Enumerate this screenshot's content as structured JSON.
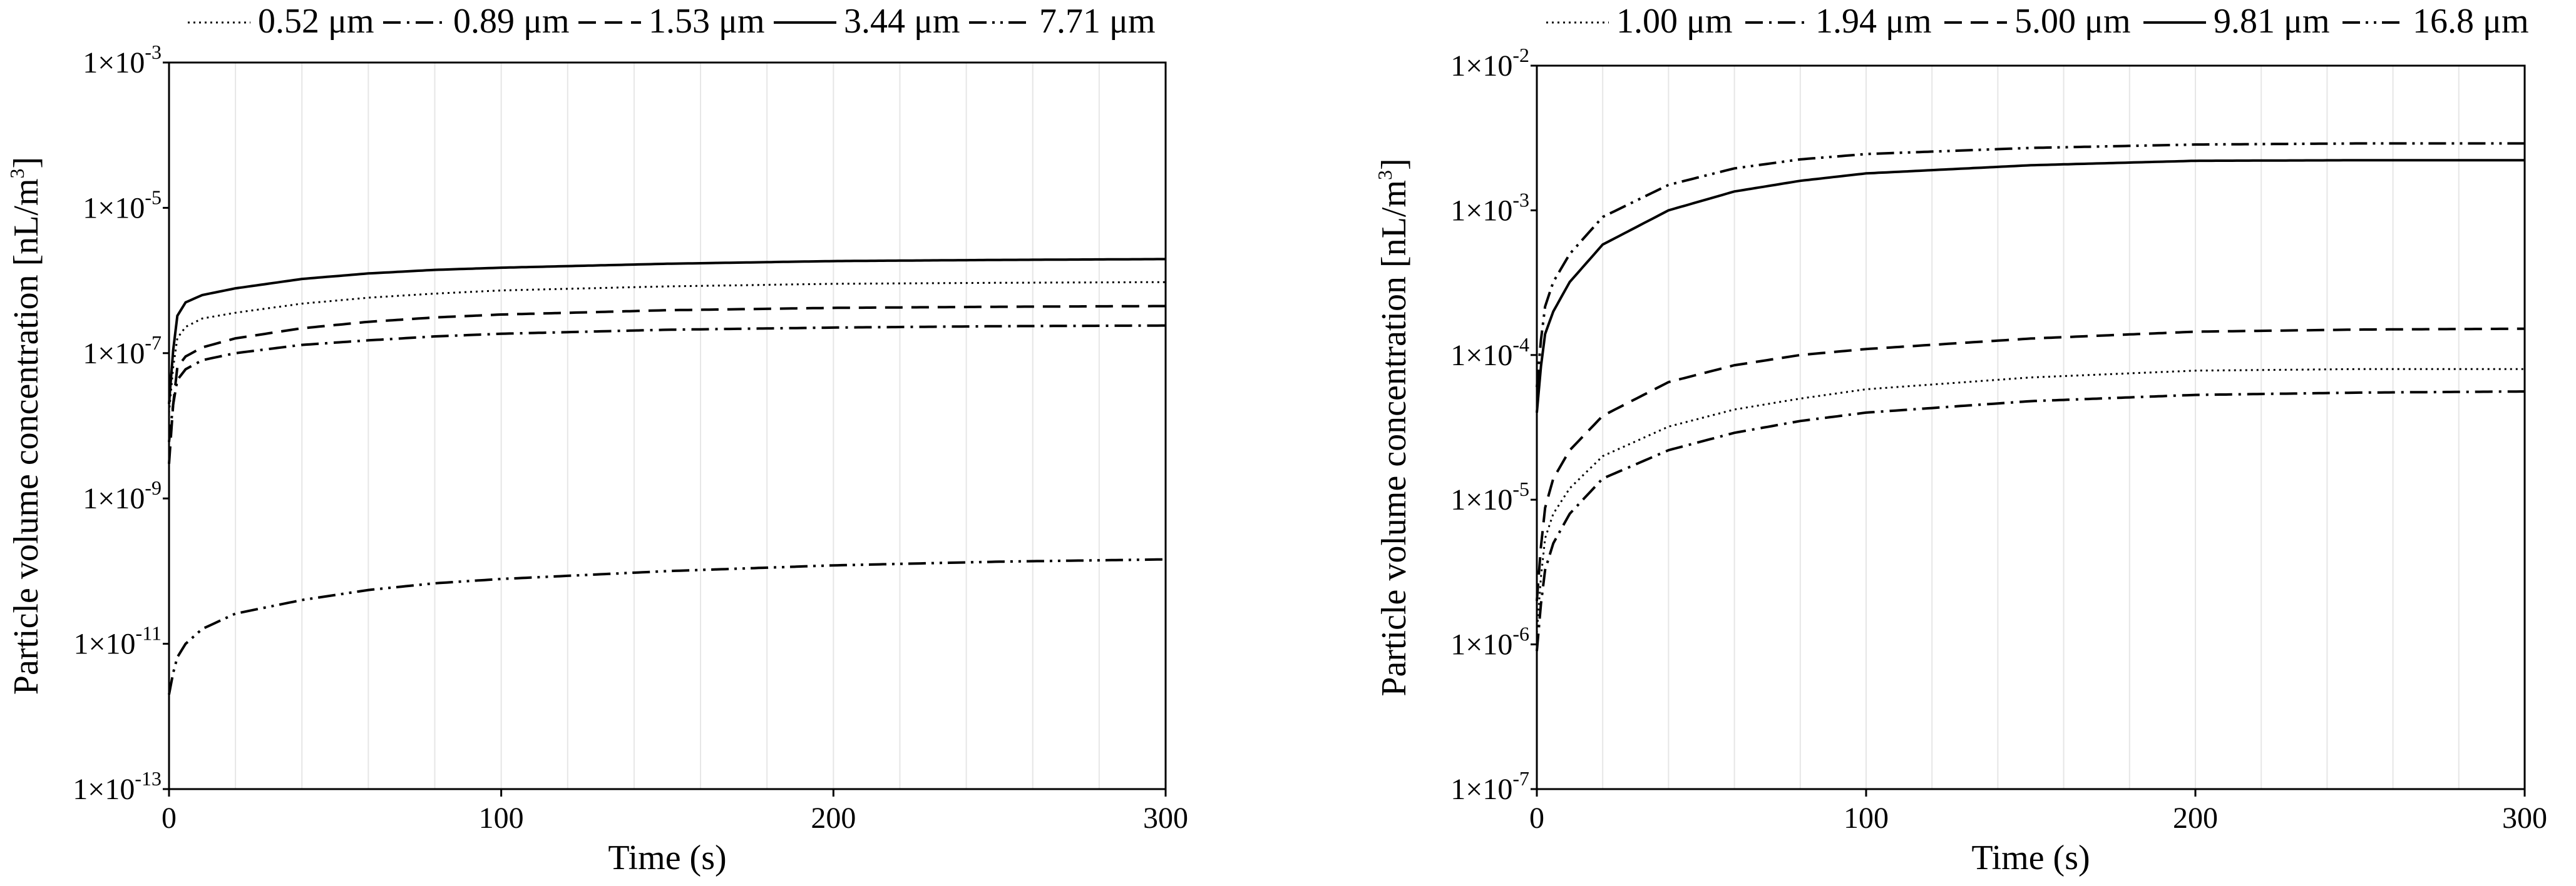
{
  "chart_data": [
    {
      "type": "line",
      "title": "",
      "xlabel": "Time (s)",
      "ylabel": "Particle volume concentration [nL/m³]",
      "xlim": [
        0,
        300
      ],
      "ylim": [
        1e-13,
        0.001
      ],
      "yscale": "log",
      "grid": "vertical",
      "legend": "top",
      "x_ticks": [
        "0",
        "100",
        "200",
        "300"
      ],
      "y_ticks": [
        {
          "value": 0.001,
          "base": "1×10",
          "exp": "-3"
        },
        {
          "value": 1e-05,
          "base": "1×10",
          "exp": "-5"
        },
        {
          "value": 1e-07,
          "base": "1×10",
          "exp": "-7"
        },
        {
          "value": 1e-09,
          "base": "1×10",
          "exp": "-9"
        },
        {
          "value": 1e-11,
          "base": "1×10",
          "exp": "-11"
        },
        {
          "value": 1e-13,
          "base": "1×10",
          "exp": "-13"
        }
      ],
      "series": [
        {
          "name": "0.52 μm",
          "style": "dotted",
          "x": [
            0,
            2,
            5,
            10,
            20,
            40,
            60,
            80,
            100,
            150,
            200,
            250,
            300
          ],
          "values": [
            1.5e-08,
            1.5e-07,
            2.3e-07,
            3e-07,
            3.6e-07,
            4.8e-07,
            5.8e-07,
            6.6e-07,
            7.3e-07,
            8.3e-07,
            9e-07,
            9.3e-07,
            9.5e-07
          ]
        },
        {
          "name": "0.89 μm",
          "style": "dashdot",
          "x": [
            0,
            2,
            5,
            10,
            20,
            40,
            60,
            80,
            100,
            150,
            200,
            250,
            300
          ],
          "values": [
            6e-09,
            4e-08,
            6e-08,
            8e-08,
            1e-07,
            1.3e-07,
            1.5e-07,
            1.7e-07,
            1.85e-07,
            2.1e-07,
            2.25e-07,
            2.35e-07,
            2.4e-07
          ]
        },
        {
          "name": "1.53 μm",
          "style": "dashed",
          "x": [
            0,
            2,
            5,
            10,
            20,
            40,
            60,
            80,
            100,
            150,
            200,
            250,
            300
          ],
          "values": [
            3e-09,
            6e-08,
            9e-08,
            1.2e-07,
            1.6e-07,
            2.2e-07,
            2.7e-07,
            3.1e-07,
            3.4e-07,
            3.9e-07,
            4.2e-07,
            4.35e-07,
            4.45e-07
          ]
        },
        {
          "name": "3.44 μm",
          "style": "solid",
          "x": [
            0,
            2,
            5,
            10,
            20,
            40,
            60,
            80,
            100,
            150,
            200,
            250,
            300
          ],
          "values": [
            2e-08,
            3e-07,
            5e-07,
            6.3e-07,
            7.8e-07,
            1.05e-06,
            1.25e-06,
            1.4e-06,
            1.5e-06,
            1.7e-06,
            1.85e-06,
            1.92e-06,
            1.97e-06
          ]
        },
        {
          "name": "7.71 μm",
          "style": "dashdotdot",
          "x": [
            0,
            2,
            5,
            10,
            20,
            40,
            60,
            80,
            100,
            150,
            200,
            250,
            300
          ],
          "values": [
            2e-12,
            6e-12,
            1e-11,
            1.6e-11,
            2.6e-11,
            4e-11,
            5.5e-11,
            6.8e-11,
            7.8e-11,
            1e-10,
            1.2e-10,
            1.35e-10,
            1.45e-10
          ]
        }
      ]
    },
    {
      "type": "line",
      "title": "",
      "xlabel": "Time (s)",
      "ylabel": "Particle volume concentration [nL/m³]",
      "xlim": [
        0,
        300
      ],
      "ylim": [
        1e-07,
        0.01
      ],
      "yscale": "log",
      "grid": "vertical",
      "legend": "top",
      "x_ticks": [
        "0",
        "100",
        "200",
        "300"
      ],
      "y_ticks": [
        {
          "value": 0.01,
          "base": "1×10",
          "exp": "-2"
        },
        {
          "value": 0.001,
          "base": "1×10",
          "exp": "-3"
        },
        {
          "value": 0.0001,
          "base": "1×10",
          "exp": "-4"
        },
        {
          "value": 1e-05,
          "base": "1×10",
          "exp": "-5"
        },
        {
          "value": 1e-06,
          "base": "1×10",
          "exp": "-6"
        },
        {
          "value": 1e-07,
          "base": "1×10",
          "exp": "-7"
        }
      ],
      "series": [
        {
          "name": "1.00 μm",
          "style": "dotted",
          "x": [
            0,
            2,
            5,
            10,
            20,
            40,
            60,
            80,
            100,
            150,
            200,
            250,
            300
          ],
          "values": [
            1.2e-06,
            5e-06,
            8e-06,
            1.2e-05,
            2e-05,
            3.2e-05,
            4.2e-05,
            5e-05,
            5.8e-05,
            7e-05,
            7.8e-05,
            8e-05,
            8e-05
          ]
        },
        {
          "name": "1.94 μm",
          "style": "dashdot",
          "x": [
            0,
            2,
            5,
            10,
            20,
            40,
            60,
            80,
            100,
            150,
            200,
            250,
            300
          ],
          "values": [
            9e-07,
            3e-06,
            5e-06,
            8e-06,
            1.4e-05,
            2.2e-05,
            2.9e-05,
            3.5e-05,
            4e-05,
            4.8e-05,
            5.3e-05,
            5.5e-05,
            5.6e-05
          ]
        },
        {
          "name": "5.00 μm",
          "style": "dashed",
          "x": [
            0,
            2,
            5,
            10,
            20,
            40,
            60,
            80,
            100,
            150,
            200,
            250,
            300
          ],
          "values": [
            2e-06,
            8e-06,
            1.4e-05,
            2.2e-05,
            3.8e-05,
            6.5e-05,
            8.5e-05,
            0.0001,
            0.00011,
            0.00013,
            0.000145,
            0.00015,
            0.000152
          ]
        },
        {
          "name": "9.81 μm",
          "style": "solid",
          "x": [
            0,
            2,
            5,
            10,
            20,
            40,
            60,
            80,
            100,
            150,
            200,
            250,
            300
          ],
          "values": [
            4e-05,
            0.00013,
            0.0002,
            0.00032,
            0.00058,
            0.001,
            0.00135,
            0.0016,
            0.0018,
            0.00205,
            0.0022,
            0.00222,
            0.00222
          ]
        },
        {
          "name": "16.8 μm",
          "style": "dashdotdot",
          "x": [
            0,
            2,
            5,
            10,
            20,
            40,
            60,
            80,
            100,
            150,
            200,
            250,
            300
          ],
          "values": [
            6e-05,
            0.0002,
            0.00032,
            0.0005,
            0.0009,
            0.0015,
            0.00195,
            0.00225,
            0.00245,
            0.0027,
            0.00285,
            0.0029,
            0.0029
          ]
        }
      ]
    }
  ]
}
